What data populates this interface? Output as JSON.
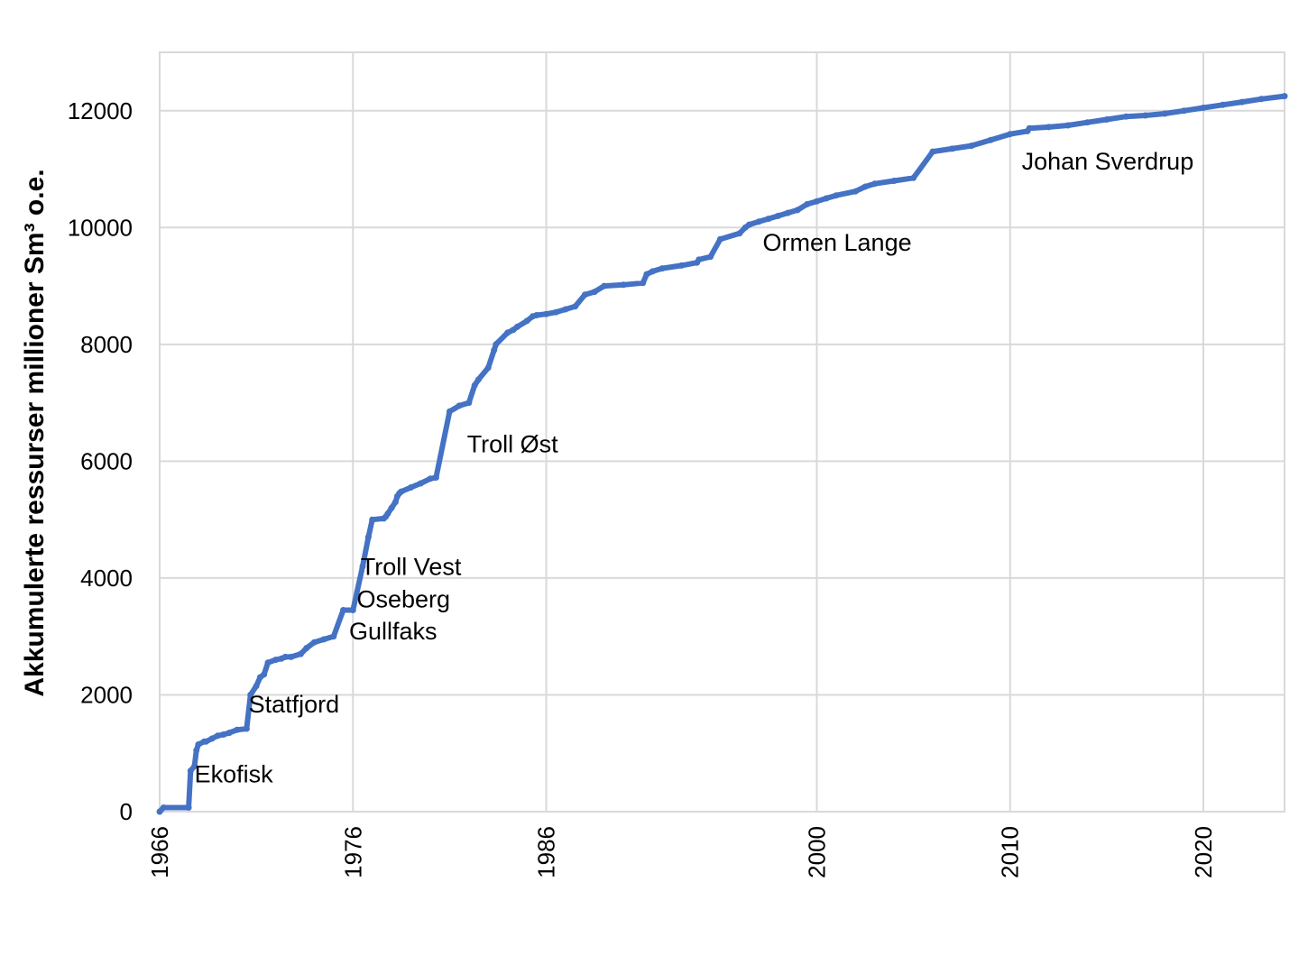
{
  "chart_data": {
    "type": "line",
    "title": "",
    "xlabel": "",
    "ylabel": "Akkumulerte ressurser millioner Sm³ o.e.",
    "xlim": [
      1966,
      2024.2
    ],
    "ylim": [
      0,
      13000
    ],
    "x_ticks": [
      "1966",
      "1976",
      "1986",
      "2000",
      "2010",
      "2020"
    ],
    "y_ticks": [
      "0",
      "2000",
      "4000",
      "6000",
      "8000",
      "10000",
      "12000"
    ],
    "grid": true,
    "line_color": "#4472C4",
    "series": [
      {
        "x": [
          1966.0,
          1966.2,
          1967.5,
          1967.6,
          1967.8,
          1967.9,
          1968.0,
          1968.3,
          1968.4,
          1968.7,
          1969.0,
          1969.3,
          1969.6,
          1970.0,
          1970.5,
          1970.7,
          1971.0,
          1971.2,
          1971.4,
          1971.6,
          1972.0,
          1972.3,
          1972.5,
          1972.8,
          1973.3,
          1973.6,
          1974.0,
          1974.5,
          1975.0,
          1975.5,
          1976.0,
          1976.5,
          1976.8,
          1977.0,
          1977.6,
          1977.7,
          1977.8,
          1978.0,
          1978.2,
          1978.3,
          1978.4,
          1978.5,
          1979.0,
          1979.5,
          1980.0,
          1980.3,
          1981.0,
          1981.5,
          1982.0,
          1982.3,
          1982.5,
          1983.0,
          1983.3,
          1983.4,
          1984.0,
          1984.3,
          1984.5,
          1985.0,
          1985.3,
          1985.5,
          1986.0,
          1986.5,
          1987.0,
          1987.5,
          1988.0,
          1988.5,
          1989.0,
          1990.0,
          1991.0,
          1991.2,
          1991.5,
          1992.0,
          1993.0,
          1993.8,
          1993.9,
          1994.5,
          1995.0,
          1996.0,
          1996.3,
          1996.5,
          1997.0,
          1997.5,
          1998.0,
          1998.5,
          1999.0,
          1999.5,
          2000.0,
          2000.5,
          2001.0,
          2002.0,
          2002.5,
          2003.0,
          2004.0,
          2005.0,
          2006.0,
          2007.0,
          2008.0,
          2009.0,
          2010.0,
          2010.9,
          2011.0,
          2012.0,
          2013.0,
          2014.0,
          2015.0,
          2016.0,
          2017.0,
          2018.0,
          2019.0,
          2020.0,
          2021.0,
          2022.0,
          2023.0,
          2024.2
        ],
        "y": [
          0,
          70,
          70,
          700,
          780,
          1050,
          1150,
          1200,
          1200,
          1250,
          1300,
          1320,
          1350,
          1400,
          1420,
          2000,
          2150,
          2300,
          2350,
          2550,
          2600,
          2620,
          2650,
          2650,
          2700,
          2800,
          2900,
          2950,
          3000,
          3450,
          3450,
          4200,
          4700,
          5000,
          5020,
          5050,
          5100,
          5200,
          5300,
          5400,
          5450,
          5480,
          5550,
          5620,
          5700,
          5720,
          6850,
          6950,
          7000,
          7300,
          7400,
          7600,
          7900,
          8000,
          8200,
          8250,
          8300,
          8400,
          8480,
          8500,
          8520,
          8550,
          8600,
          8650,
          8850,
          8900,
          9000,
          9020,
          9050,
          9200,
          9250,
          9300,
          9350,
          9400,
          9450,
          9500,
          9800,
          9900,
          10000,
          10050,
          10100,
          10150,
          10200,
          10250,
          10300,
          10400,
          10450,
          10500,
          10550,
          10620,
          10700,
          10750,
          10800,
          10850,
          11300,
          11350,
          11400,
          11500,
          11600,
          11650,
          11700,
          11720,
          11750,
          11800,
          11850,
          11900,
          11920,
          11950,
          12000,
          12050,
          12100,
          12150,
          12200,
          12250
        ]
      }
    ],
    "annotations": [
      {
        "text": "Ekofisk",
        "x": 1967.8,
        "y": 500
      },
      {
        "text": "Statfjord",
        "x": 1970.6,
        "y": 1700
      },
      {
        "text": "Troll Vest",
        "x": 1976.4,
        "y": 4050
      },
      {
        "text": "Oseberg",
        "x": 1976.2,
        "y": 3500
      },
      {
        "text": "Gullfaks",
        "x": 1975.8,
        "y": 2950
      },
      {
        "text": "Troll Øst",
        "x": 1981.9,
        "y": 6150
      },
      {
        "text": "Ormen Lange",
        "x": 1997.2,
        "y": 9600
      },
      {
        "text": "Johan Sverdrup",
        "x": 2010.6,
        "y": 10990
      }
    ]
  }
}
